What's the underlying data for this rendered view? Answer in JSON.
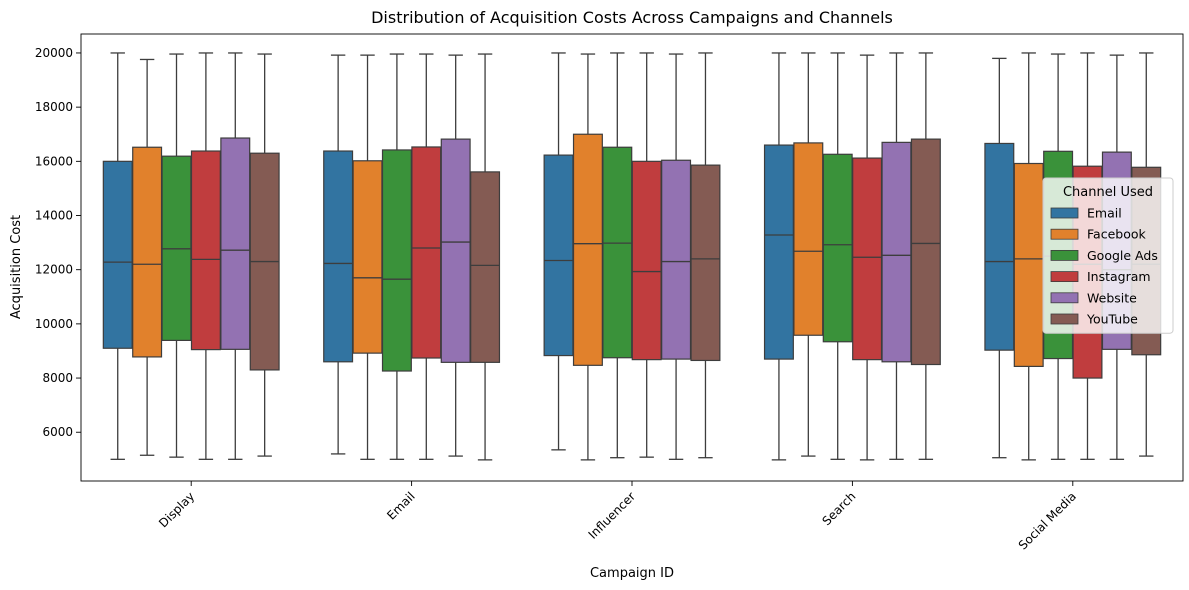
{
  "chart_data": {
    "type": "boxplot",
    "title": "Distribution of Acquisition Costs Across Campaigns and Channels",
    "xlabel": "Campaign ID",
    "ylabel": "Acquisition Cost",
    "ylim": [
      4200,
      20700
    ],
    "yticks": [
      6000,
      8000,
      10000,
      12000,
      14000,
      16000,
      18000,
      20000
    ],
    "grid": false,
    "legend": {
      "title": "Channel Used",
      "placement": "center-right"
    },
    "categories": [
      "Display",
      "Email",
      "Influencer",
      "Search",
      "Social Media"
    ],
    "series": [
      {
        "name": "Email",
        "color": "#3274a1",
        "boxes": [
          {
            "min": 5000,
            "q1": 9100,
            "median": 12280,
            "q3": 16000,
            "max": 20000
          },
          {
            "min": 5200,
            "q1": 8600,
            "median": 12230,
            "q3": 16380,
            "max": 19920
          },
          {
            "min": 5350,
            "q1": 8830,
            "median": 12340,
            "q3": 16230,
            "max": 20000
          },
          {
            "min": 4980,
            "q1": 8700,
            "median": 13280,
            "q3": 16600,
            "max": 20000
          },
          {
            "min": 5060,
            "q1": 9030,
            "median": 12300,
            "q3": 16660,
            "max": 19800
          }
        ]
      },
      {
        "name": "Facebook",
        "color": "#e1812c",
        "boxes": [
          {
            "min": 5150,
            "q1": 8780,
            "median": 12200,
            "q3": 16520,
            "max": 19760
          },
          {
            "min": 5000,
            "q1": 8920,
            "median": 11700,
            "q3": 16020,
            "max": 19920
          },
          {
            "min": 4980,
            "q1": 8470,
            "median": 12960,
            "q3": 17000,
            "max": 19960
          },
          {
            "min": 5120,
            "q1": 9580,
            "median": 12680,
            "q3": 16680,
            "max": 20000
          },
          {
            "min": 4980,
            "q1": 8430,
            "median": 12400,
            "q3": 15920,
            "max": 20000
          }
        ]
      },
      {
        "name": "Google Ads",
        "color": "#3a923a",
        "boxes": [
          {
            "min": 5080,
            "q1": 9390,
            "median": 12770,
            "q3": 16190,
            "max": 19960
          },
          {
            "min": 5000,
            "q1": 8260,
            "median": 11650,
            "q3": 16420,
            "max": 19960
          },
          {
            "min": 5060,
            "q1": 8750,
            "median": 12980,
            "q3": 16520,
            "max": 20000
          },
          {
            "min": 5000,
            "q1": 9340,
            "median": 12920,
            "q3": 16260,
            "max": 20000
          },
          {
            "min": 5000,
            "q1": 8720,
            "median": 12500,
            "q3": 16370,
            "max": 19960
          }
        ]
      },
      {
        "name": "Instagram",
        "color": "#c03d3e",
        "boxes": [
          {
            "min": 5000,
            "q1": 9050,
            "median": 12380,
            "q3": 16380,
            "max": 20000
          },
          {
            "min": 5000,
            "q1": 8740,
            "median": 12800,
            "q3": 16530,
            "max": 19960
          },
          {
            "min": 5080,
            "q1": 8680,
            "median": 11930,
            "q3": 16000,
            "max": 20000
          },
          {
            "min": 4980,
            "q1": 8680,
            "median": 12460,
            "q3": 16120,
            "max": 19920
          },
          {
            "min": 5000,
            "q1": 8000,
            "median": 12200,
            "q3": 15820,
            "max": 20000
          }
        ]
      },
      {
        "name": "Website",
        "color": "#9372b2",
        "boxes": [
          {
            "min": 5000,
            "q1": 9060,
            "median": 12720,
            "q3": 16860,
            "max": 20000
          },
          {
            "min": 5120,
            "q1": 8580,
            "median": 13020,
            "q3": 16820,
            "max": 19920
          },
          {
            "min": 5000,
            "q1": 8700,
            "median": 12300,
            "q3": 16040,
            "max": 19960
          },
          {
            "min": 5000,
            "q1": 8600,
            "median": 12530,
            "q3": 16700,
            "max": 20000
          },
          {
            "min": 5000,
            "q1": 9060,
            "median": 12000,
            "q3": 16340,
            "max": 19920
          }
        ]
      },
      {
        "name": "YouTube",
        "color": "#845b53",
        "boxes": [
          {
            "min": 5120,
            "q1": 8300,
            "median": 12300,
            "q3": 16300,
            "max": 19960
          },
          {
            "min": 4980,
            "q1": 8580,
            "median": 12160,
            "q3": 15610,
            "max": 19960
          },
          {
            "min": 5060,
            "q1": 8650,
            "median": 12400,
            "q3": 15860,
            "max": 20000
          },
          {
            "min": 5000,
            "q1": 8500,
            "median": 12970,
            "q3": 16820,
            "max": 20000
          },
          {
            "min": 5120,
            "q1": 8860,
            "median": 12200,
            "q3": 15780,
            "max": 20000
          }
        ]
      }
    ]
  }
}
